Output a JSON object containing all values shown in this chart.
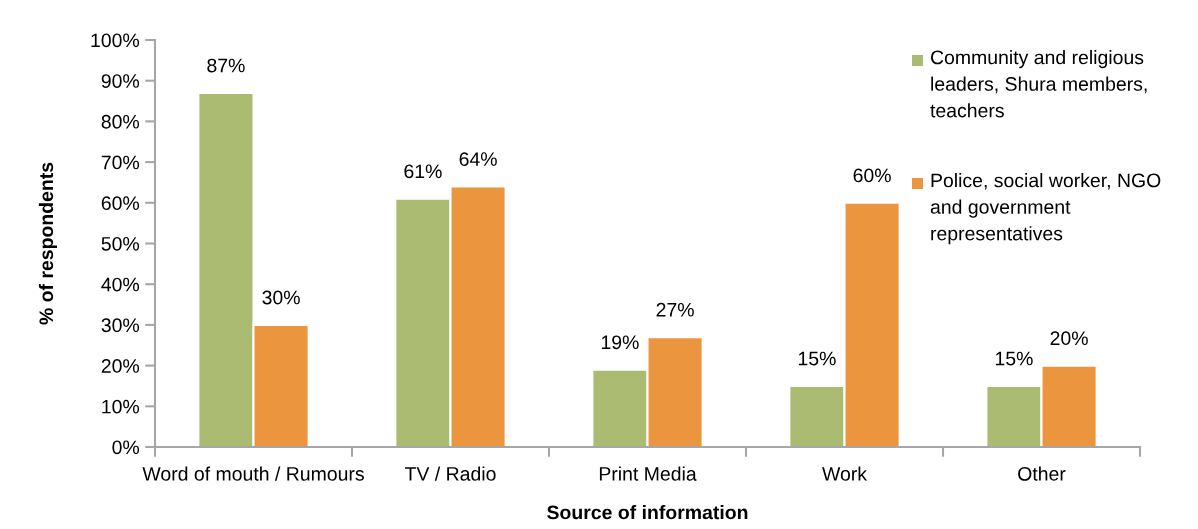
{
  "chart_data": {
    "type": "bar",
    "xlabel": "Source of information",
    "ylabel": "% of respondents",
    "categories": [
      "Word of mouth / Rumours",
      "TV / Radio",
      "Print Media",
      "Work",
      "Other"
    ],
    "series": [
      {
        "name": "Community and religious leaders, Shura members, teachers",
        "color": "#abbb72",
        "values": [
          87,
          61,
          19,
          15,
          15
        ],
        "value_labels": [
          "87%",
          "61%",
          "19%",
          "15%",
          "15%"
        ]
      },
      {
        "name": "Police, social worker, NGO and government representatives",
        "color": "#eb963e",
        "values": [
          30,
          64,
          27,
          60,
          20
        ],
        "value_labels": [
          "30%",
          "64%",
          "27%",
          "60%",
          "20%"
        ]
      }
    ],
    "ylim": [
      0,
      100
    ],
    "yticks": [
      {
        "value": 0,
        "label": "0%"
      },
      {
        "value": 10,
        "label": "10%"
      },
      {
        "value": 20,
        "label": "20%"
      },
      {
        "value": 30,
        "label": "30%"
      },
      {
        "value": 40,
        "label": "40%"
      },
      {
        "value": 50,
        "label": "50%"
      },
      {
        "value": 60,
        "label": "60%"
      },
      {
        "value": 70,
        "label": "70%"
      },
      {
        "value": 80,
        "label": "80%"
      },
      {
        "value": 90,
        "label": "90%"
      },
      {
        "value": 100,
        "label": "100%"
      }
    ],
    "legend": "top right"
  }
}
